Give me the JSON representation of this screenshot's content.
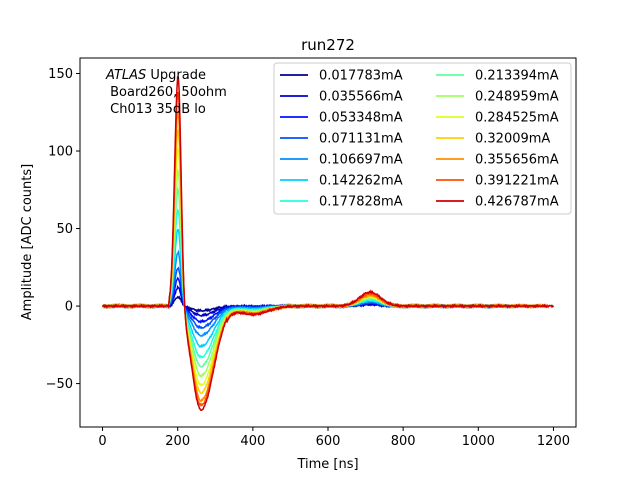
{
  "chart_data": {
    "type": "line",
    "title": "run272",
    "xlabel": "Time [ns]",
    "ylabel": "Amplitude [ADC counts]",
    "xlim": [
      -60,
      1260
    ],
    "ylim": [
      -78,
      160
    ],
    "xticks": [
      0,
      200,
      400,
      600,
      800,
      1000,
      1200
    ],
    "yticks": [
      -50,
      0,
      50,
      100,
      150
    ],
    "grid": false,
    "legend_position": "upper-right",
    "legend_columns": 2,
    "annotation": {
      "italic_part": "ATLAS",
      "rest_line1": " Upgrade",
      "line2": " Board260, 50ohm",
      "line3": " Ch013 35dB lo"
    },
    "series": [
      {
        "name": "0.017783mA",
        "color": "#00008f",
        "peak": 6,
        "trough": -3,
        "bump": 1,
        "x_end": 1040
      },
      {
        "name": "0.035566mA",
        "color": "#0000cf",
        "peak": 12,
        "trough": -6,
        "bump": 1.5,
        "x_end": 1040
      },
      {
        "name": "0.053348mA",
        "color": "#0010ff",
        "peak": 18,
        "trough": -10,
        "bump": 2,
        "x_end": 1060
      },
      {
        "name": "0.071131mA",
        "color": "#0050ff",
        "peak": 25,
        "trough": -14,
        "bump": 2.5,
        "x_end": 1080
      },
      {
        "name": "0.106697mA",
        "color": "#008fff",
        "peak": 35,
        "trough": -19,
        "bump": 3,
        "x_end": 1100
      },
      {
        "name": "0.142262mA",
        "color": "#00d0ff",
        "peak": 50,
        "trough": -26,
        "bump": 3.5,
        "x_end": 1100
      },
      {
        "name": "0.177828mA",
        "color": "#20ffdf",
        "peak": 63,
        "trough": -33,
        "bump": 4,
        "x_end": 1120
      },
      {
        "name": "0.213394mA",
        "color": "#60ff9f",
        "peak": 76,
        "trough": -39,
        "bump": 5,
        "x_end": 1140
      },
      {
        "name": "0.248959mA",
        "color": "#9fff60",
        "peak": 88,
        "trough": -45,
        "bump": 5.5,
        "x_end": 1160
      },
      {
        "name": "0.284525mA",
        "color": "#dfff20",
        "peak": 103,
        "trough": -51,
        "bump": 6,
        "x_end": 1180
      },
      {
        "name": "0.32009mA",
        "color": "#ffd000",
        "peak": 115,
        "trough": -56,
        "bump": 6.5,
        "x_end": 880
      },
      {
        "name": "0.355656mA",
        "color": "#ff8f00",
        "peak": 127,
        "trough": -61,
        "bump": 7,
        "x_end": 1180
      },
      {
        "name": "0.391221mA",
        "color": "#ff5000",
        "peak": 140,
        "trough": -64,
        "bump": 8,
        "x_end": 1190
      },
      {
        "name": "0.426787mA",
        "color": "#cf0000",
        "peak": 150,
        "trough": -67,
        "bump": 9,
        "x_end": 1200
      }
    ]
  }
}
